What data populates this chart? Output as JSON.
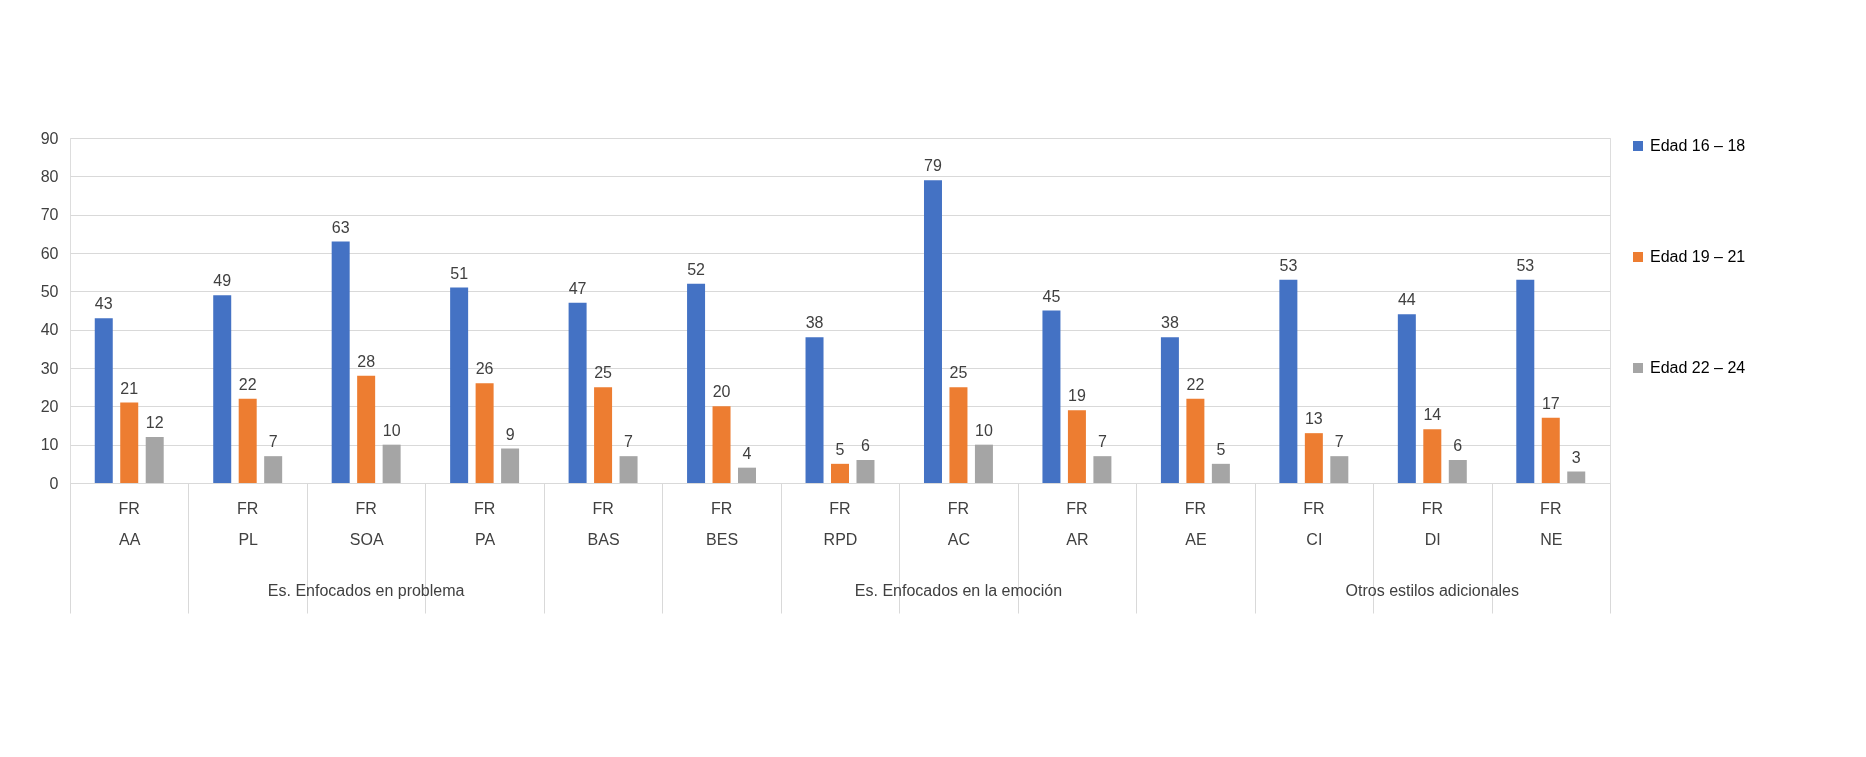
{
  "chart_data": {
    "type": "bar",
    "categories": [
      "AA",
      "PL",
      "SOA",
      "PA",
      "BAS",
      "BES",
      "RPD",
      "AC",
      "AR",
      "AE",
      "CI",
      "DI",
      "NE"
    ],
    "series": [
      {
        "name": "Edad 16 – 18",
        "color": "#4472c4",
        "values": [
          43,
          49,
          63,
          51,
          47,
          52,
          38,
          79,
          45,
          38,
          53,
          44,
          53
        ]
      },
      {
        "name": "Edad 19 – 21",
        "color": "#ed7d31",
        "values": [
          21,
          22,
          28,
          26,
          25,
          20,
          5,
          25,
          19,
          22,
          13,
          14,
          17
        ]
      },
      {
        "name": "Edad 22 – 24",
        "color": "#a5a5a5",
        "values": [
          12,
          7,
          10,
          9,
          7,
          4,
          6,
          10,
          7,
          5,
          7,
          6,
          3
        ]
      }
    ],
    "annotations": [
      "FR",
      "FR",
      "FR",
      "FR",
      "FR",
      "FR",
      "FR",
      "FR",
      "FR",
      "FR",
      "FR",
      "FR",
      "FR",
      "Es. Enfocados en problema",
      "Es. Enfocados en la emoción",
      "Otros estilos adicionales"
    ],
    "ylim": [
      0,
      90
    ],
    "yticks": [
      0,
      10,
      20,
      30,
      40,
      50,
      60,
      70,
      80,
      90
    ],
    "grid": "y",
    "legend": "right",
    "data_labels": true
  }
}
